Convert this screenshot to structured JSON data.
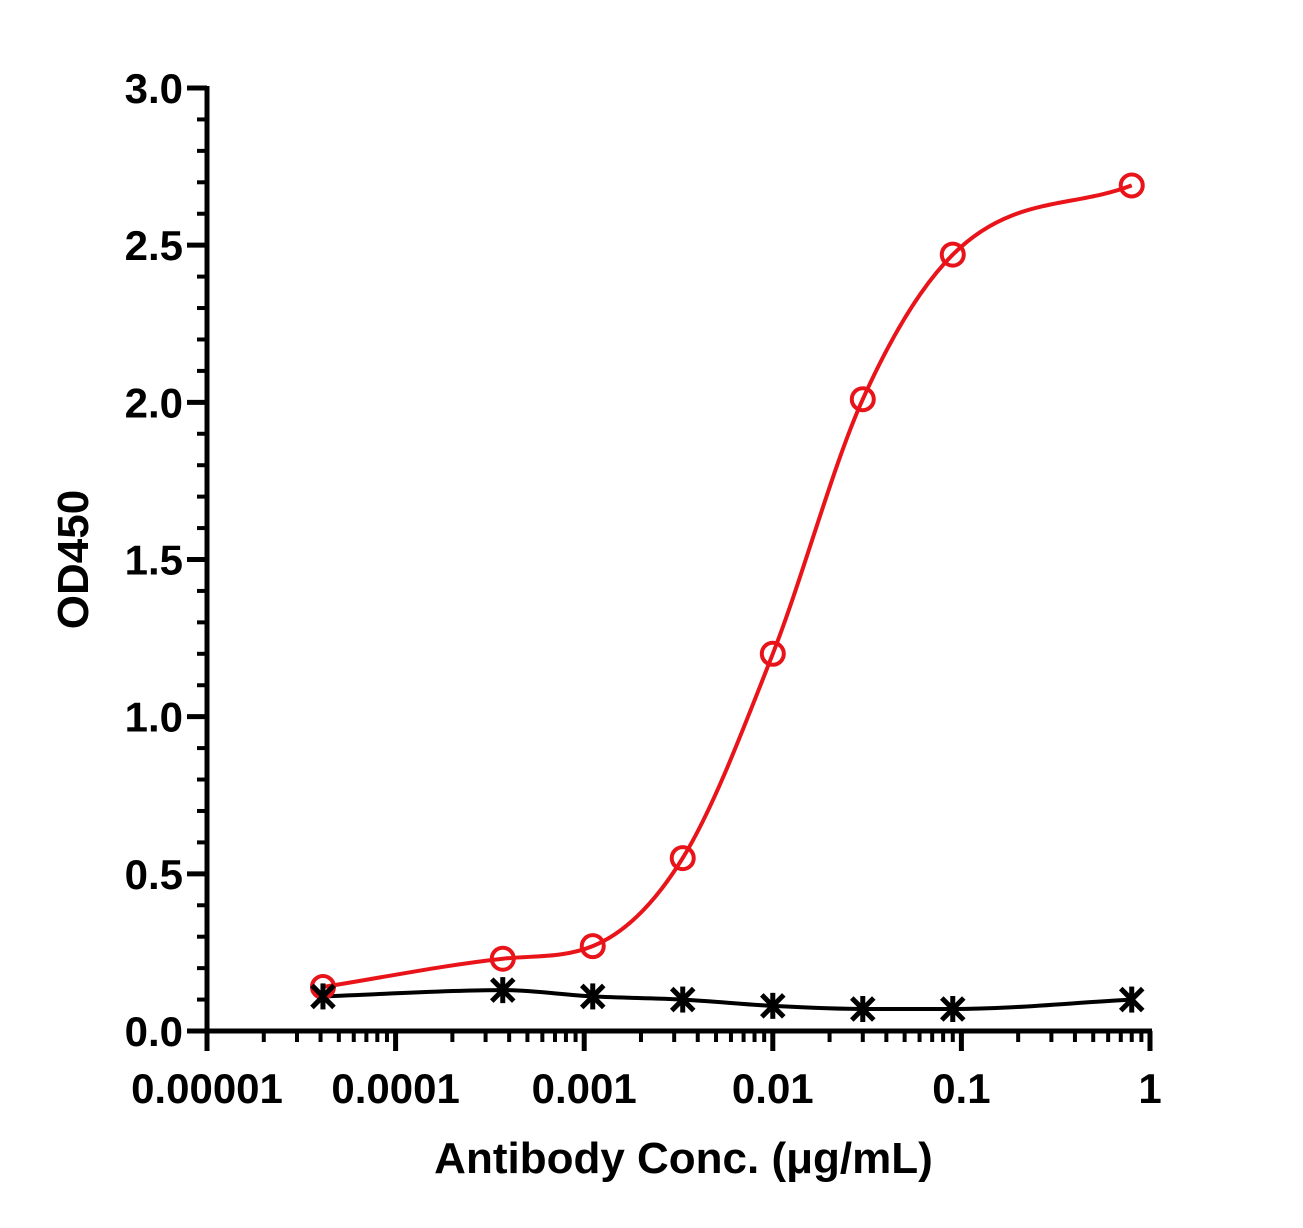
{
  "chart_data": {
    "type": "scatter",
    "xlabel": "Antibody Conc. (μg/mL)",
    "ylabel": "OD450",
    "xscale": "log",
    "xlim": [
      1e-05,
      1
    ],
    "ylim": [
      0,
      3
    ],
    "x_ticks": [
      "0.00001",
      "0.0001",
      "0.001",
      "0.01",
      "0.1",
      "1"
    ],
    "y_ticks": [
      "0.0",
      "0.5",
      "1.0",
      "1.5",
      "2.0",
      "2.5",
      "3.0"
    ],
    "grid": false,
    "legend": "none",
    "series": [
      {
        "color": "#e8141a",
        "marker": "open-circle",
        "fit": "sigmoid",
        "x": [
          4.12e-05,
          0.00037,
          0.00111,
          0.00333,
          0.01,
          0.03,
          0.09,
          0.8
        ],
        "y": [
          0.14,
          0.23,
          0.27,
          0.55,
          1.2,
          2.01,
          2.47,
          2.69
        ]
      },
      {
        "color": "#000000",
        "marker": "asterisk",
        "fit": "sigmoid",
        "x": [
          4.12e-05,
          0.00037,
          0.00111,
          0.00333,
          0.01,
          0.03,
          0.09,
          0.8
        ],
        "y": [
          0.11,
          0.13,
          0.11,
          0.1,
          0.08,
          0.07,
          0.07,
          0.1
        ]
      }
    ]
  }
}
